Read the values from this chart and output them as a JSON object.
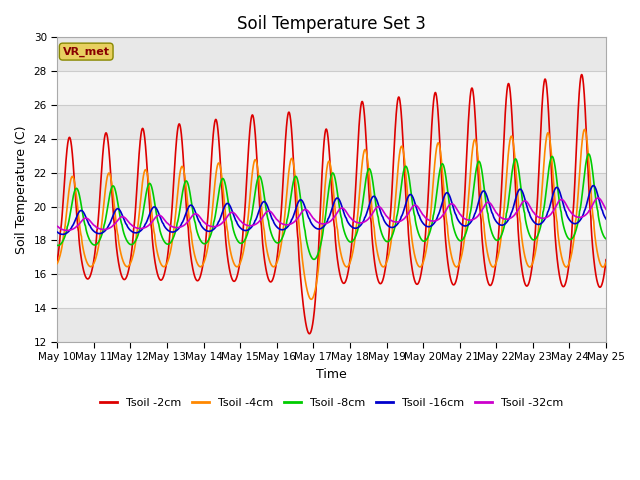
{
  "title": "Soil Temperature Set 3",
  "xlabel": "Time",
  "ylabel": "Soil Temperature (C)",
  "ylim": [
    12,
    30
  ],
  "yticks": [
    12,
    14,
    16,
    18,
    20,
    22,
    24,
    26,
    28,
    30
  ],
  "background_color": "#ffffff",
  "plot_bg_light": "#e8e8e8",
  "plot_bg_white": "#f8f8f8",
  "grid_color": "#d0d0d0",
  "series": [
    {
      "label": "Tsoil -2cm",
      "color": "#dd0000",
      "lw": 1.2
    },
    {
      "label": "Tsoil -4cm",
      "color": "#ff8800",
      "lw": 1.2
    },
    {
      "label": "Tsoil -8cm",
      "color": "#00cc00",
      "lw": 1.2
    },
    {
      "label": "Tsoil -16cm",
      "color": "#0000cc",
      "lw": 1.2
    },
    {
      "label": "Tsoil -32cm",
      "color": "#cc00cc",
      "lw": 1.2
    }
  ],
  "x_tick_labels": [
    "May 10",
    "May 11",
    "May 12",
    "May 13",
    "May 14",
    "May 15",
    "May 16",
    "May 17",
    "May 18",
    "May 19",
    "May 20",
    "May 21",
    "May 22",
    "May 23",
    "May 24",
    "May 25"
  ],
  "annotation_text": "VR_met",
  "title_fontsize": 12,
  "axis_label_fontsize": 9,
  "tick_fontsize": 7.5
}
